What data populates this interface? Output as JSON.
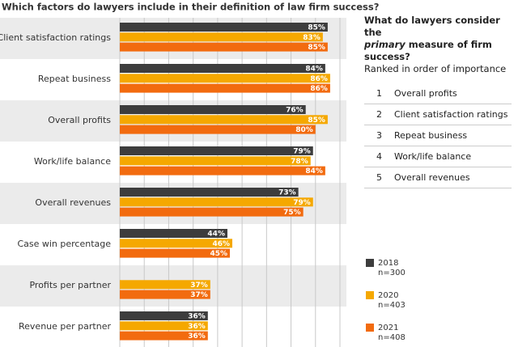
{
  "chart_data": {
    "type": "bar",
    "orientation": "horizontal",
    "title": "Which factors do lawyers include in their definition of law firm success?",
    "categories": [
      "Client satisfaction ratings",
      "Repeat business",
      "Overall profits",
      "Work/life balance",
      "Overall revenues",
      "Case win percentage",
      "Profits per partner",
      "Revenue per partner"
    ],
    "series": [
      {
        "name": "2018",
        "sample": "n=300",
        "color": "#3d3d3d",
        "values": [
          85,
          84,
          76,
          79,
          73,
          44,
          null,
          36
        ],
        "value_labels": [
          "85%",
          "84%",
          "76%",
          "79%",
          "73%",
          "44%",
          null,
          "36%"
        ]
      },
      {
        "name": "2020",
        "sample": "n=403",
        "color": "#f5a800",
        "values": [
          83,
          86,
          85,
          78,
          79,
          46,
          37,
          36
        ],
        "value_labels": [
          "83%",
          "86%",
          "85%",
          "78%",
          "79%",
          "46%",
          "37%",
          "36%"
        ]
      },
      {
        "name": "2021",
        "sample": "n=408",
        "color": "#f26b0f",
        "values": [
          85,
          86,
          80,
          84,
          75,
          45,
          37,
          36
        ],
        "value_labels": [
          "85%",
          "86%",
          "80%",
          "84%",
          "75%",
          "45%",
          "37%",
          "36%"
        ]
      }
    ],
    "xlim": [
      0,
      90
    ],
    "xticks": [
      0,
      10,
      20,
      30,
      40,
      50,
      60,
      70,
      80,
      90
    ],
    "grid": true
  },
  "ranking": {
    "heading": [
      "What do lawyers consider the",
      "primary",
      "measure of firm success?"
    ],
    "subheading": "Ranked in order of importance",
    "items": [
      {
        "rank": 1,
        "label": "Overall profits"
      },
      {
        "rank": 2,
        "label": "Client satisfaction ratings"
      },
      {
        "rank": 3,
        "label": "Repeat business"
      },
      {
        "rank": 4,
        "label": "Work/life balance"
      },
      {
        "rank": 5,
        "label": "Overall revenues"
      }
    ]
  }
}
